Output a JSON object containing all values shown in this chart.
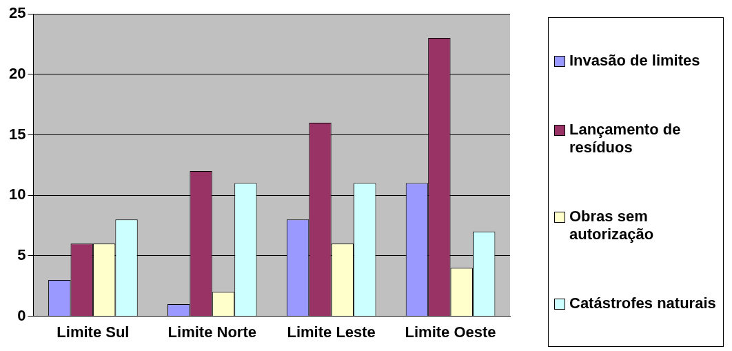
{
  "chart_data": {
    "type": "bar",
    "categories": [
      "Limite Sul",
      "Limite Norte",
      "Limite Leste",
      "Limite Oeste"
    ],
    "series": [
      {
        "name": "Invasão de limites",
        "color": "#9999ff",
        "values": [
          3,
          1,
          8,
          11
        ]
      },
      {
        "name": "Lançamento de resíduos",
        "color": "#993366",
        "values": [
          6,
          12,
          16,
          23
        ]
      },
      {
        "name": "Obras sem autorização",
        "color": "#ffffcc",
        "values": [
          6,
          2,
          6,
          4
        ]
      },
      {
        "name": "Catástrofes naturais",
        "color": "#ccffff",
        "values": [
          8,
          11,
          11,
          7
        ]
      }
    ],
    "ylim": [
      0,
      25
    ],
    "yticks": [
      0,
      5,
      10,
      15,
      20,
      25
    ],
    "grid": "y",
    "legend": "right"
  }
}
